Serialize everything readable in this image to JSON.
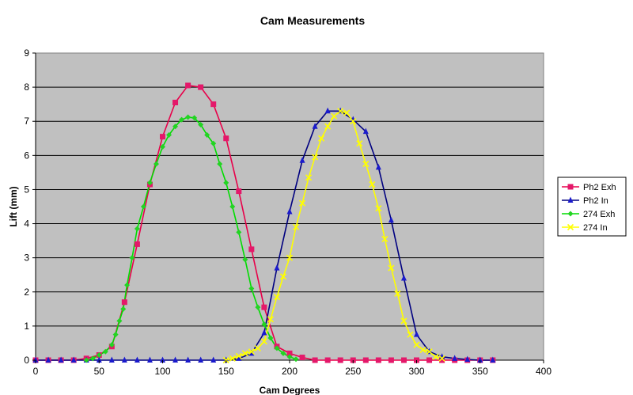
{
  "chart_data": {
    "type": "line",
    "title": "Cam Measurements",
    "xlabel": "Cam Degrees",
    "ylabel": "Lift (mm)",
    "xlim": [
      0,
      400
    ],
    "ylim": [
      0,
      9
    ],
    "x_ticks": [
      "0",
      "50",
      "100",
      "150",
      "200",
      "250",
      "300",
      "350",
      "400"
    ],
    "y_ticks": [
      "0",
      "1",
      "2",
      "3",
      "4",
      "5",
      "6",
      "7",
      "8",
      "9"
    ],
    "grid": "horizontal",
    "legend_position": "right",
    "plot_background": "#c0c0c0",
    "series": [
      {
        "name": "Ph2 Exh",
        "color": "#e8004a",
        "marker": "square",
        "marker_color": "#e4186a",
        "points": [
          [
            0,
            0
          ],
          [
            10,
            0
          ],
          [
            20,
            0
          ],
          [
            30,
            0
          ],
          [
            40,
            0.05
          ],
          [
            50,
            0.15
          ],
          [
            60,
            0.4
          ],
          [
            70,
            1.7
          ],
          [
            80,
            3.4
          ],
          [
            90,
            5.15
          ],
          [
            100,
            6.55
          ],
          [
            110,
            7.55
          ],
          [
            120,
            8.05
          ],
          [
            130,
            8.0
          ],
          [
            140,
            7.5
          ],
          [
            150,
            6.5
          ],
          [
            160,
            4.95
          ],
          [
            170,
            3.25
          ],
          [
            180,
            1.55
          ],
          [
            190,
            0.4
          ],
          [
            200,
            0.2
          ],
          [
            210,
            0.08
          ],
          [
            220,
            0
          ],
          [
            230,
            0
          ],
          [
            240,
            0
          ],
          [
            250,
            0
          ],
          [
            260,
            0
          ],
          [
            270,
            0
          ],
          [
            280,
            0
          ],
          [
            290,
            0
          ],
          [
            300,
            0
          ],
          [
            310,
            0
          ],
          [
            320,
            0
          ],
          [
            330,
            0
          ],
          [
            340,
            0
          ],
          [
            350,
            0
          ],
          [
            360,
            0
          ]
        ]
      },
      {
        "name": "Ph2 In",
        "color": "#000080",
        "marker": "triangle",
        "marker_color": "#1a1acd",
        "points": [
          [
            0,
            0
          ],
          [
            10,
            0
          ],
          [
            20,
            0
          ],
          [
            30,
            0
          ],
          [
            40,
            0
          ],
          [
            50,
            0
          ],
          [
            60,
            0
          ],
          [
            70,
            0
          ],
          [
            80,
            0
          ],
          [
            90,
            0
          ],
          [
            100,
            0
          ],
          [
            110,
            0
          ],
          [
            120,
            0
          ],
          [
            130,
            0
          ],
          [
            140,
            0
          ],
          [
            150,
            0
          ],
          [
            160,
            0.05
          ],
          [
            170,
            0.2
          ],
          [
            180,
            0.8
          ],
          [
            190,
            2.7
          ],
          [
            200,
            4.35
          ],
          [
            210,
            5.85
          ],
          [
            220,
            6.85
          ],
          [
            230,
            7.3
          ],
          [
            240,
            7.3
          ],
          [
            250,
            7.05
          ],
          [
            260,
            6.7
          ],
          [
            270,
            5.65
          ],
          [
            280,
            4.1
          ],
          [
            290,
            2.4
          ],
          [
            300,
            0.75
          ],
          [
            310,
            0.25
          ],
          [
            320,
            0.1
          ],
          [
            330,
            0.05
          ],
          [
            340,
            0.02
          ],
          [
            350,
            0
          ],
          [
            360,
            0
          ]
        ]
      },
      {
        "name": "274 Exh",
        "color": "#00dd00",
        "marker": "diamond",
        "marker_color": "#22d422",
        "points": [
          [
            40,
            0
          ],
          [
            45,
            0.05
          ],
          [
            50,
            0.15
          ],
          [
            55,
            0.25
          ],
          [
            60,
            0.45
          ],
          [
            63,
            0.75
          ],
          [
            66,
            1.15
          ],
          [
            69,
            1.5
          ],
          [
            72,
            2.2
          ],
          [
            76,
            3.0
          ],
          [
            80,
            3.85
          ],
          [
            85,
            4.5
          ],
          [
            90,
            5.2
          ],
          [
            95,
            5.75
          ],
          [
            100,
            6.25
          ],
          [
            105,
            6.6
          ],
          [
            110,
            6.85
          ],
          [
            115,
            7.05
          ],
          [
            120,
            7.12
          ],
          [
            125,
            7.1
          ],
          [
            130,
            6.9
          ],
          [
            135,
            6.6
          ],
          [
            140,
            6.35
          ],
          [
            145,
            5.75
          ],
          [
            150,
            5.2
          ],
          [
            155,
            4.5
          ],
          [
            160,
            3.75
          ],
          [
            165,
            2.95
          ],
          [
            170,
            2.1
          ],
          [
            175,
            1.55
          ],
          [
            180,
            1.05
          ],
          [
            185,
            0.65
          ],
          [
            190,
            0.35
          ],
          [
            195,
            0.2
          ],
          [
            200,
            0.1
          ],
          [
            205,
            0.03
          ]
        ]
      },
      {
        "name": "274 In",
        "color": "#ffff00",
        "marker": "cross",
        "marker_color": "#ffff00",
        "points": [
          [
            150,
            0
          ],
          [
            155,
            0.05
          ],
          [
            160,
            0.12
          ],
          [
            165,
            0.2
          ],
          [
            170,
            0.25
          ],
          [
            175,
            0.35
          ],
          [
            180,
            0.55
          ],
          [
            185,
            1.2
          ],
          [
            190,
            1.85
          ],
          [
            195,
            2.45
          ],
          [
            200,
            3.0
          ],
          [
            205,
            3.9
          ],
          [
            210,
            4.6
          ],
          [
            215,
            5.35
          ],
          [
            220,
            5.95
          ],
          [
            225,
            6.5
          ],
          [
            230,
            6.85
          ],
          [
            235,
            7.15
          ],
          [
            240,
            7.3
          ],
          [
            245,
            7.25
          ],
          [
            250,
            7.0
          ],
          [
            255,
            6.35
          ],
          [
            260,
            5.75
          ],
          [
            265,
            5.15
          ],
          [
            270,
            4.45
          ],
          [
            275,
            3.55
          ],
          [
            280,
            2.7
          ],
          [
            285,
            1.95
          ],
          [
            290,
            1.15
          ],
          [
            295,
            0.75
          ],
          [
            300,
            0.45
          ],
          [
            305,
            0.3
          ],
          [
            310,
            0.25
          ],
          [
            315,
            0.1
          ],
          [
            320,
            0.05
          ]
        ]
      }
    ]
  }
}
